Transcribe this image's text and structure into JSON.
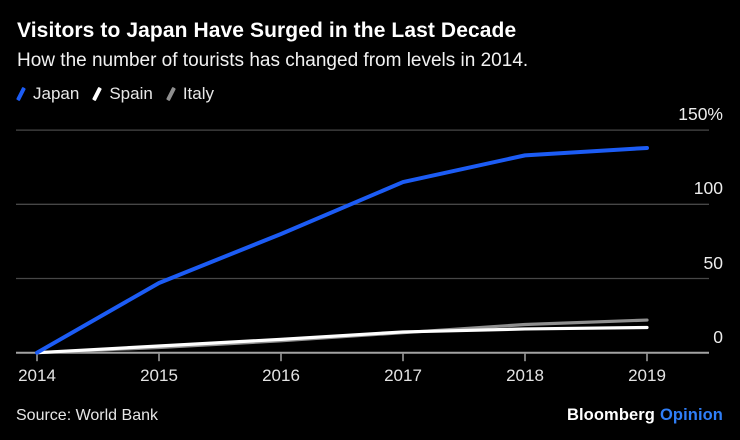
{
  "header": {
    "title": "Visitors to Japan Have Surged in the Last Decade",
    "subtitle": "How the number of tourists has changed from levels in 2014."
  },
  "legend": {
    "items": [
      {
        "label": "Japan",
        "color": "#1c5cf5"
      },
      {
        "label": "Spain",
        "color": "#ffffff"
      },
      {
        "label": "Italy",
        "color": "#8f8f8f"
      }
    ]
  },
  "axes": {
    "x_labels": [
      "2014",
      "2015",
      "2016",
      "2017",
      "2018",
      "2019"
    ],
    "y_ticks": [
      0,
      50,
      100,
      150
    ],
    "y_tick_labels": [
      "0",
      "50",
      "100",
      "150%"
    ]
  },
  "footer": {
    "source": "Source: World Bank",
    "brand": "Bloomberg",
    "brand_edition": "Opinion"
  },
  "colors": {
    "background": "#000000",
    "gridline": "#474747",
    "baseline": "#a3a3a3",
    "brand_blue": "#2f7ef7"
  },
  "chart_data": {
    "type": "line",
    "title": "Visitors to Japan Have Surged in the Last Decade",
    "subtitle": "How the number of tourists has changed from levels in 2014.",
    "x": [
      2014,
      2015,
      2016,
      2017,
      2018,
      2019
    ],
    "series": [
      {
        "name": "Japan",
        "color": "#1c5cf5",
        "values": [
          0,
          47,
          80,
          115,
          133,
          138
        ]
      },
      {
        "name": "Spain",
        "color": "#ffffff",
        "values": [
          0,
          4.5,
          9,
          14,
          16,
          17
        ]
      },
      {
        "name": "Italy",
        "color": "#8f8f8f",
        "values": [
          0,
          3.5,
          8,
          13.5,
          19,
          22
        ]
      }
    ],
    "xlabel": "",
    "ylabel": "",
    "y_unit": "%",
    "ylim": [
      0,
      150
    ],
    "yticks": [
      0,
      50,
      100,
      150
    ],
    "grid": "horizontal",
    "legend_position": "top-left",
    "source": "Source: World Bank"
  }
}
